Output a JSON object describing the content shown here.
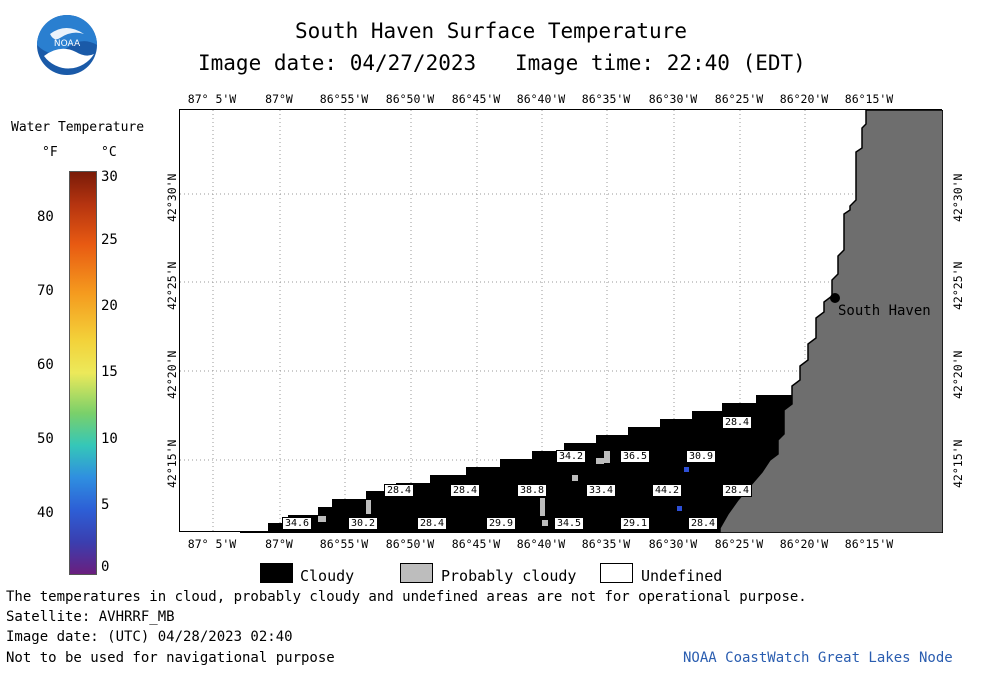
{
  "header": {
    "title": "South Haven Surface Temperature",
    "date_line": "Image date: 04/27/2023",
    "time_line": "Image time: 22:40 (EDT)"
  },
  "logo": {
    "text": "NOAA",
    "color": "#1a5aa8"
  },
  "colorbar": {
    "title": "Water Temperature",
    "unit_f": "°F",
    "unit_c": "°C",
    "f_ticks": [
      "80",
      "70",
      "60",
      "50",
      "40"
    ],
    "c_ticks": [
      "30",
      "25",
      "20",
      "15",
      "10",
      "5",
      "0"
    ]
  },
  "map": {
    "lon_labels": [
      "87° 5'W",
      "87°W",
      "86°55'W",
      "86°50'W",
      "86°45'W",
      "86°40'W",
      "86°35'W",
      "86°30'W",
      "86°25'W",
      "86°20'W",
      "86°15'W"
    ],
    "lat_labels": [
      "42°30'N",
      "42°25'N",
      "42°20'N",
      "42°15'N"
    ],
    "city_label": "South Haven",
    "land_color": "#6e6e6e",
    "cloud_color": "#000000",
    "temps": [
      "28.4",
      "34.2",
      "36.5",
      "30.9",
      "28.4",
      "28.4",
      "38.8",
      "33.4",
      "44.2",
      "28.4",
      "34.6",
      "30.2",
      "28.4",
      "29.9",
      "34.5",
      "29.1",
      "28.4"
    ]
  },
  "legend": {
    "cloudy": "Cloudy",
    "probably_cloudy": "Probably cloudy",
    "undefined": "Undefined"
  },
  "footer": {
    "note": "The temperatures in cloud, probably cloudy and undefined areas are not for operational purpose.",
    "satellite": "Satellite: AVHRRF_MB",
    "utc_date": "Image date: (UTC) 04/28/2023  02:40",
    "nav": "Not to be used for navigational purpose",
    "credit": "NOAA CoastWatch Great Lakes Node"
  }
}
